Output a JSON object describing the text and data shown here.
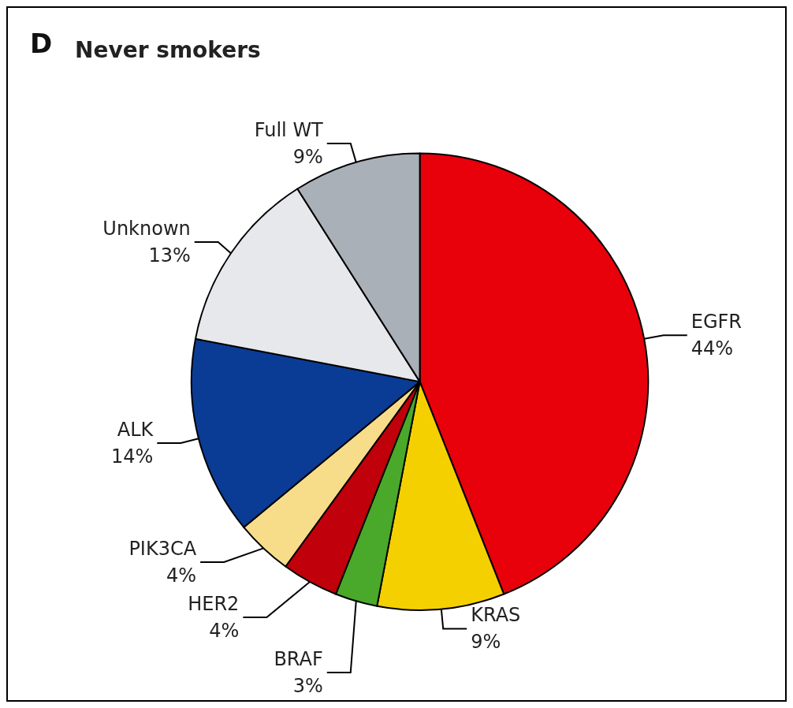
{
  "chart_data": {
    "type": "pie",
    "title": "Never smokers",
    "annotations": [
      "D"
    ],
    "categories": [
      "EGFR",
      "KRAS",
      "BRAF",
      "HER2",
      "PIK3CA",
      "ALK",
      "Unknown",
      "Full WT"
    ],
    "values": [
      44,
      9,
      3,
      4,
      4,
      14,
      13,
      9
    ],
    "value_labels": [
      "44%",
      "9%",
      "3%",
      "4%",
      "4%",
      "14%",
      "13%",
      "9%"
    ],
    "colors": [
      "#e8000b",
      "#f5d000",
      "#4aa82a",
      "#c0000a",
      "#f7dc8a",
      "#0a3c96",
      "#e6e8ec",
      "#aab0b8"
    ],
    "legend": false
  }
}
